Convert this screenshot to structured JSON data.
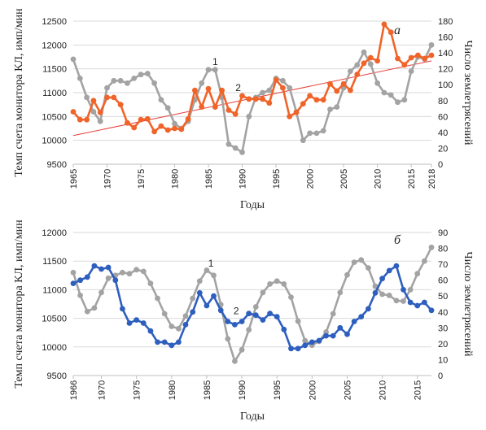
{
  "chart_data": [
    {
      "type": "line",
      "panel_label": "а",
      "xlabel": "Годы",
      "ylabel_left": "Темп счета монитора КЛ, имп/мин",
      "ylabel_right": "Число землетрясений",
      "x_range": [
        1965,
        2018
      ],
      "x_ticks": [
        "1965",
        "1970",
        "1975",
        "1980",
        "1985",
        "1990",
        "1995",
        "2000",
        "2005",
        "2010",
        "2015",
        "2018"
      ],
      "ylim_left": [
        9500,
        12500
      ],
      "y_ticks_left": [
        "9500",
        "10000",
        "10500",
        "11000",
        "11500",
        "12000",
        "12500"
      ],
      "ylim_right": [
        0,
        180
      ],
      "y_ticks_right": [
        "0",
        "20",
        "40",
        "60",
        "80",
        "100",
        "120",
        "140",
        "160",
        "180"
      ],
      "grid": true,
      "annotations": [
        {
          "text": "1",
          "x": 1986,
          "axis": "left",
          "y": 11580
        },
        {
          "text": "2",
          "x": 1989.4,
          "axis": "left",
          "y": 11030
        }
      ],
      "trendline": {
        "axis": "right",
        "x": [
          1965,
          2018
        ],
        "y": [
          36,
          130
        ],
        "color": "#e8403a"
      },
      "series": [
        {
          "axis": "left",
          "color": "#a3a3a3",
          "x": [
            1965,
            1966,
            1967,
            1968,
            1969,
            1970,
            1971,
            1972,
            1973,
            1974,
            1975,
            1976,
            1977,
            1978,
            1979,
            1980,
            1981,
            1982,
            1983,
            1984,
            1985,
            1986,
            1987,
            1988,
            1989,
            1990,
            1991,
            1992,
            1993,
            1994,
            1995,
            1996,
            1997,
            1998,
            1999,
            2000,
            2001,
            2002,
            2003,
            2004,
            2005,
            2006,
            2007,
            2008,
            2009,
            2010,
            2011,
            2012,
            2013,
            2014,
            2015,
            2016,
            2017,
            2018
          ],
          "y": [
            11700,
            11300,
            10900,
            10600,
            10400,
            11100,
            11250,
            11250,
            11200,
            11300,
            11380,
            11400,
            11200,
            10850,
            10680,
            10350,
            10250,
            10400,
            10850,
            11200,
            11480,
            11480,
            10900,
            9920,
            9840,
            9750,
            10500,
            10900,
            11000,
            11050,
            11300,
            11250,
            11100,
            10600,
            10000,
            10150,
            10150,
            10200,
            10650,
            10700,
            11100,
            11450,
            11580,
            11850,
            11600,
            11200,
            11000,
            10950,
            10800,
            10850,
            11450,
            11750,
            11700,
            12000
          ]
        },
        {
          "axis": "right",
          "color": "#f0642a",
          "x": [
            1965,
            1966,
            1967,
            1968,
            1969,
            1970,
            1971,
            1972,
            1973,
            1974,
            1975,
            1976,
            1977,
            1978,
            1979,
            1980,
            1981,
            1982,
            1983,
            1984,
            1985,
            1986,
            1987,
            1988,
            1989,
            1990,
            1991,
            1992,
            1993,
            1994,
            1995,
            1996,
            1997,
            1998,
            1999,
            2000,
            2001,
            2002,
            2003,
            2004,
            2005,
            2006,
            2007,
            2008,
            2009,
            2010,
            2011,
            2012,
            2013,
            2014,
            2015,
            2016,
            2017,
            2018
          ],
          "y": [
            66,
            56,
            56,
            80,
            65,
            84,
            84,
            75,
            52,
            46,
            56,
            57,
            41,
            48,
            43,
            45,
            44,
            57,
            93,
            72,
            95,
            72,
            93,
            68,
            63,
            86,
            82,
            82,
            82,
            77,
            106,
            96,
            60,
            65,
            76,
            86,
            81,
            81,
            101,
            92,
            101,
            93,
            113,
            127,
            134,
            130,
            176,
            166,
            133,
            125,
            134,
            137,
            133,
            137
          ]
        }
      ]
    },
    {
      "type": "line",
      "panel_label": "б",
      "xlabel": "Годы",
      "ylabel_left": "Темп счета монитора КЛ, имп/мин",
      "ylabel_right": "Число землетрясений",
      "x_range": [
        1966,
        2017
      ],
      "x_ticks": [
        "1966",
        "1970",
        "1975",
        "1980",
        "1985",
        "1990",
        "1995",
        "2000",
        "2005",
        "2010",
        "2015"
      ],
      "ylim_left": [
        9500,
        12000
      ],
      "y_ticks_left": [
        "9500",
        "10000",
        "10500",
        "11000",
        "11500",
        "12000"
      ],
      "ylim_right": [
        0,
        90
      ],
      "y_ticks_right": [
        "0",
        "10",
        "20",
        "30",
        "40",
        "50",
        "60",
        "70",
        "80",
        "90"
      ],
      "grid": true,
      "annotations": [
        {
          "text": "1",
          "x": 1985.6,
          "axis": "left",
          "y": 11400
        },
        {
          "text": "2",
          "x": 1989.2,
          "axis": "left",
          "y": 10570
        }
      ],
      "series": [
        {
          "axis": "left",
          "color": "#a3a3a3",
          "x": [
            1966,
            1967,
            1968,
            1969,
            1970,
            1971,
            1972,
            1973,
            1974,
            1975,
            1976,
            1977,
            1978,
            1979,
            1980,
            1981,
            1982,
            1983,
            1984,
            1985,
            1986,
            1987,
            1988,
            1989,
            1990,
            1991,
            1992,
            1993,
            1994,
            1995,
            1996,
            1997,
            1998,
            1999,
            2000,
            2001,
            2002,
            2003,
            2004,
            2005,
            2006,
            2007,
            2008,
            2009,
            2010,
            2011,
            2012,
            2013,
            2014,
            2015,
            2016,
            2017
          ],
          "y": [
            11300,
            10900,
            10620,
            10680,
            10950,
            11200,
            11250,
            11300,
            11280,
            11350,
            11320,
            11110,
            10850,
            10580,
            10360,
            10320,
            10540,
            10850,
            11150,
            11340,
            11250,
            10740,
            10140,
            9750,
            9950,
            10300,
            10700,
            10950,
            11100,
            11150,
            11100,
            10870,
            10450,
            10110,
            10030,
            10100,
            10260,
            10580,
            10950,
            11260,
            11480,
            11520,
            11380,
            11060,
            10920,
            10900,
            10810,
            10800,
            11000,
            11280,
            11500,
            11740
          ]
        },
        {
          "axis": "right",
          "color": "#2e5fbe",
          "x": [
            1966,
            1967,
            1968,
            1969,
            1970,
            1971,
            1972,
            1973,
            1974,
            1975,
            1976,
            1977,
            1978,
            1979,
            1980,
            1981,
            1982,
            1983,
            1984,
            1985,
            1986,
            1987,
            1988,
            1989,
            1990,
            1991,
            1992,
            1993,
            1994,
            1995,
            1996,
            1997,
            1998,
            1999,
            2000,
            2001,
            2002,
            2003,
            2004,
            2005,
            2006,
            2007,
            2008,
            2009,
            2010,
            2011,
            2012,
            2013,
            2014,
            2015,
            2016,
            2017
          ],
          "y": [
            58,
            60,
            62,
            69,
            67,
            68,
            60,
            42,
            33,
            35,
            33,
            28,
            21,
            21,
            19,
            21,
            32,
            40,
            52,
            44,
            50,
            41,
            34,
            32,
            34,
            39,
            38,
            35,
            39,
            37,
            29,
            17,
            17,
            19,
            21,
            22,
            25,
            25,
            30,
            26,
            34,
            37,
            42,
            52,
            61,
            66,
            69,
            54,
            46,
            44,
            46,
            41
          ]
        }
      ]
    }
  ]
}
